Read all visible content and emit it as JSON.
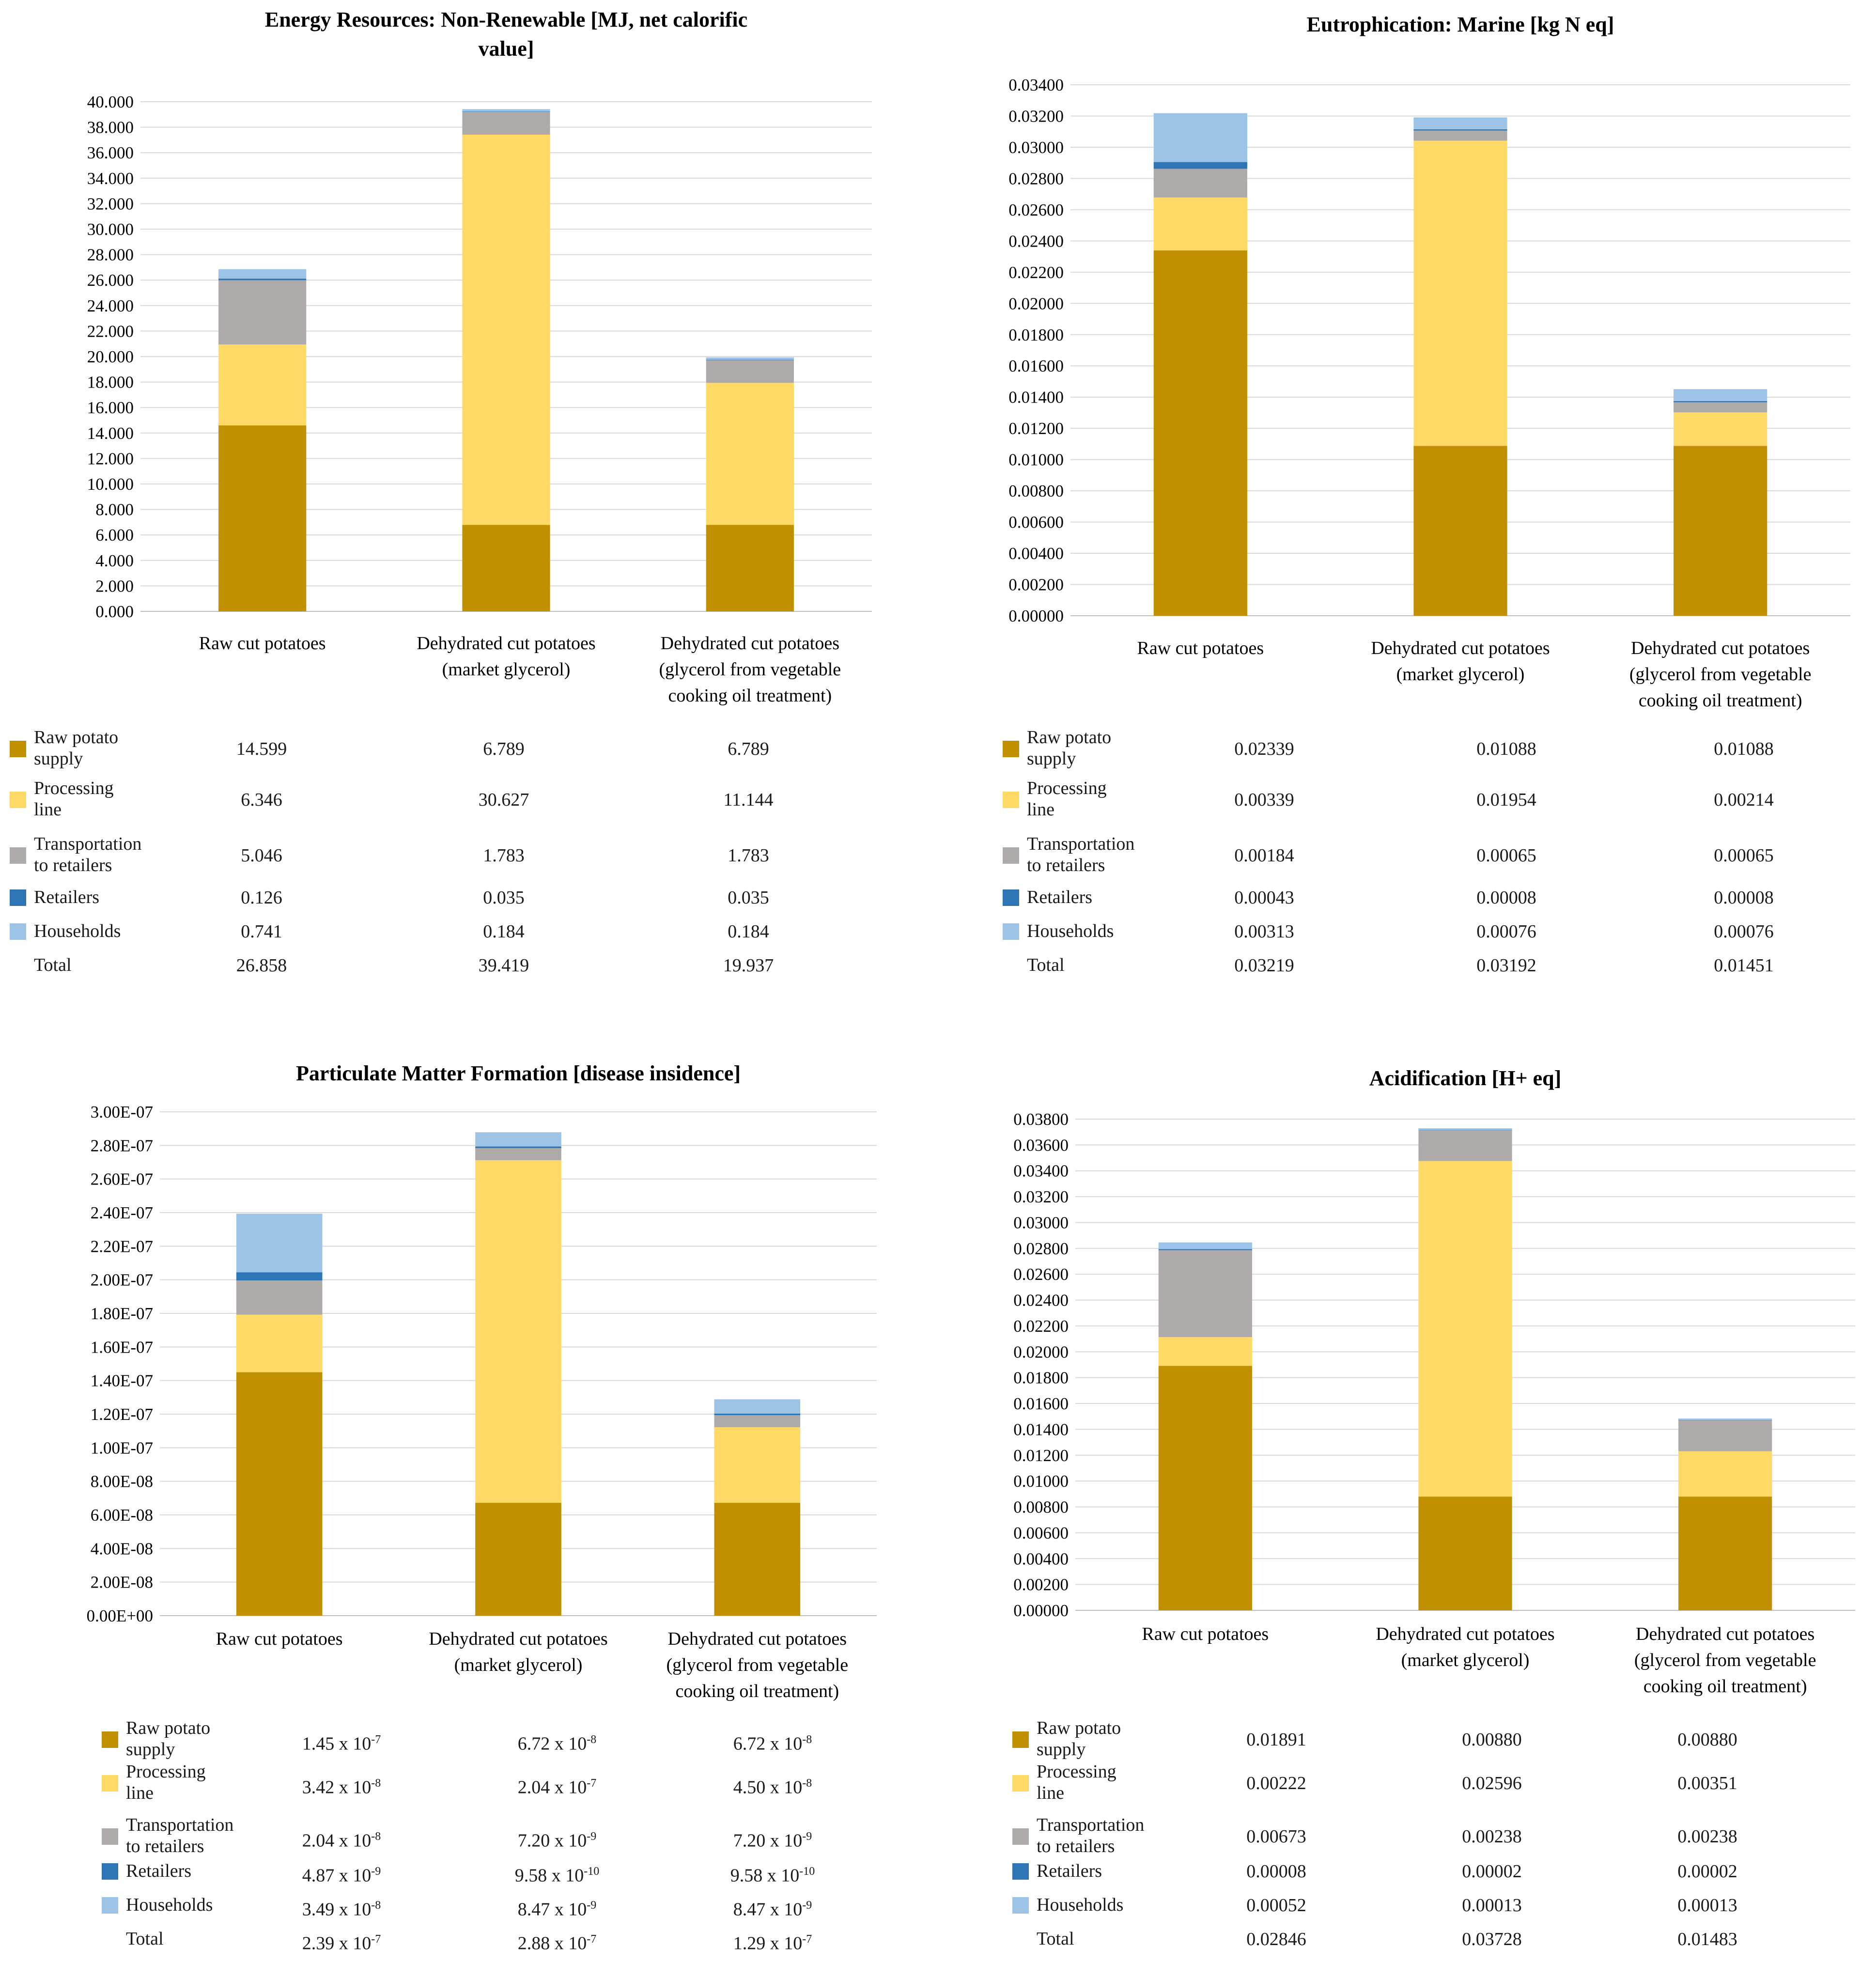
{
  "colors": {
    "Raw potato supply": "#C09000",
    "Processing line": "#FFD966",
    "Transportation to retailers": "#AEAAAA",
    "Retailers": "#2E75B6",
    "Households": "#9DC3E6"
  },
  "categories": [
    "Raw cut potatoes",
    "Dehydrated cut potatoes (market glycerol)",
    "Dehydrated cut potatoes (glycerol from vegetable cooking oil treatment)"
  ],
  "chart_data": [
    {
      "type": "bar",
      "stacked": true,
      "title": "Energy Resources: Non-Renewable [MJ, net calorific value]",
      "title_lines": [
        "Energy Resources: Non-Renewable [MJ, net calorific",
        "value]"
      ],
      "category_lines": [
        [
          "Raw cut potatoes"
        ],
        [
          "Dehydrated cut potatoes",
          "(market glycerol)"
        ],
        [
          "Dehydrated cut potatoes",
          "(glycerol from vegetable",
          "cooking oil treatment)"
        ]
      ],
      "ylim": [
        0,
        40
      ],
      "ytick_step": 2,
      "ytick_labels": [
        "0.000",
        "2.000",
        "4.000",
        "6.000",
        "8.000",
        "10.000",
        "12.000",
        "14.000",
        "16.000",
        "18.000",
        "20.000",
        "22.000",
        "24.000",
        "26.000",
        "28.000",
        "30.000",
        "32.000",
        "34.000",
        "36.000",
        "38.000",
        "40.000"
      ],
      "series": [
        {
          "name": "Raw potato supply",
          "label_lines": [
            "Raw potato",
            "supply"
          ],
          "values": [
            14.599,
            6.789,
            6.789
          ],
          "display": [
            "14.599",
            "6.789",
            "6.789"
          ]
        },
        {
          "name": "Processing line",
          "label_lines": [
            "Processing",
            "line"
          ],
          "values": [
            6.346,
            30.627,
            11.144
          ],
          "display": [
            "6.346",
            "30.627",
            "11.144"
          ]
        },
        {
          "name": "Transportation to retailers",
          "label_lines": [
            "Transportation",
            "to retailers"
          ],
          "values": [
            5.046,
            1.783,
            1.783
          ],
          "display": [
            "5.046",
            "1.783",
            "1.783"
          ]
        },
        {
          "name": "Retailers",
          "label_lines": [
            "Retailers"
          ],
          "values": [
            0.126,
            0.035,
            0.035
          ],
          "display": [
            "0.126",
            "0.035",
            "0.035"
          ]
        },
        {
          "name": "Households",
          "label_lines": [
            "Households"
          ],
          "values": [
            0.741,
            0.184,
            0.184
          ],
          "display": [
            "0.741",
            "0.184",
            "0.184"
          ]
        }
      ],
      "total_label": "Total",
      "totals": [
        "26.858",
        "39.419",
        "19.937"
      ]
    },
    {
      "type": "bar",
      "stacked": true,
      "title": "Eutrophication: Marine [kg N eq]",
      "title_lines": [
        "Eutrophication: Marine [kg N eq]"
      ],
      "category_lines": [
        [
          "Raw cut potatoes"
        ],
        [
          "Dehydrated cut potatoes",
          "(market glycerol)"
        ],
        [
          "Dehydrated cut potatoes",
          "(glycerol from vegetable",
          "cooking oil treatment)"
        ]
      ],
      "ylim": [
        0,
        0.034
      ],
      "ytick_step": 0.002,
      "ytick_labels": [
        "0.00000",
        "0.00200",
        "0.00400",
        "0.00600",
        "0.00800",
        "0.01000",
        "0.01200",
        "0.01400",
        "0.01600",
        "0.01800",
        "0.02000",
        "0.02200",
        "0.02400",
        "0.02600",
        "0.02800",
        "0.03000",
        "0.03200",
        "0.03400"
      ],
      "series": [
        {
          "name": "Raw potato supply",
          "label_lines": [
            "Raw potato",
            "supply"
          ],
          "values": [
            0.02339,
            0.01088,
            0.01088
          ],
          "display": [
            "0.02339",
            "0.01088",
            "0.01088"
          ]
        },
        {
          "name": "Processing line",
          "label_lines": [
            "Processing",
            "line"
          ],
          "values": [
            0.00339,
            0.01954,
            0.00214
          ],
          "display": [
            "0.00339",
            "0.01954",
            "0.00214"
          ]
        },
        {
          "name": "Transportation to retailers",
          "label_lines": [
            "Transportation",
            "to retailers"
          ],
          "values": [
            0.00184,
            0.00065,
            0.00065
          ],
          "display": [
            "0.00184",
            "0.00065",
            "0.00065"
          ]
        },
        {
          "name": "Retailers",
          "label_lines": [
            "Retailers"
          ],
          "values": [
            0.00043,
            8e-05,
            8e-05
          ],
          "display": [
            "0.00043",
            "0.00008",
            "0.00008"
          ]
        },
        {
          "name": "Households",
          "label_lines": [
            "Households"
          ],
          "values": [
            0.00313,
            0.00076,
            0.00076
          ],
          "display": [
            "0.00313",
            "0.00076",
            "0.00076"
          ]
        }
      ],
      "total_label": "Total",
      "totals": [
        "0.03219",
        "0.03192",
        "0.01451"
      ]
    },
    {
      "type": "bar",
      "stacked": true,
      "title": "Particulate Matter Formation [disease insidence]",
      "title_lines": [
        "Particulate Matter Formation [disease insidence]"
      ],
      "category_lines": [
        [
          "Raw cut potatoes"
        ],
        [
          "Dehydrated cut potatoes",
          "(market glycerol)"
        ],
        [
          "Dehydrated cut potatoes",
          "(glycerol from vegetable",
          "cooking oil treatment)"
        ]
      ],
      "ylim": [
        0,
        3e-07
      ],
      "ytick_step": 2e-08,
      "ytick_labels": [
        "0.00E+00",
        "2.00E-08",
        "4.00E-08",
        "6.00E-08",
        "8.00E-08",
        "1.00E-07",
        "1.20E-07",
        "1.40E-07",
        "1.60E-07",
        "1.80E-07",
        "2.00E-07",
        "2.20E-07",
        "2.40E-07",
        "2.60E-07",
        "2.80E-07",
        "3.00E-07"
      ],
      "series": [
        {
          "name": "Raw potato supply",
          "label_lines": [
            "Raw potato",
            "supply"
          ],
          "values": [
            1.45e-07,
            6.72e-08,
            6.72e-08
          ],
          "display": [
            "1.45 x 10-7",
            "6.72 x 10-8",
            "6.72 x 10-8"
          ]
        },
        {
          "name": "Processing line",
          "label_lines": [
            "Processing",
            "line"
          ],
          "values": [
            3.42e-08,
            2.04e-07,
            4.5e-08
          ],
          "display": [
            "3.42 x 10-8",
            "2.04 x 10-7",
            "4.50 x 10-8"
          ]
        },
        {
          "name": "Transportation to retailers",
          "label_lines": [
            "Transportation",
            "to retailers"
          ],
          "values": [
            2.04e-08,
            7.2e-09,
            7.2e-09
          ],
          "display": [
            "2.04 x 10-8",
            "7.20 x 10-9",
            "7.20 x 10-9"
          ]
        },
        {
          "name": "Retailers",
          "label_lines": [
            "Retailers"
          ],
          "values": [
            4.87e-09,
            9.58e-10,
            9.58e-10
          ],
          "display": [
            "4.87 x 10-9",
            "9.58 x 10-10",
            "9.58 x 10-10"
          ]
        },
        {
          "name": "Households",
          "label_lines": [
            "Households"
          ],
          "values": [
            3.49e-08,
            8.47e-09,
            8.47e-09
          ],
          "display": [
            "3.49 x 10-8",
            "8.47 x 10-9",
            "8.47 x 10-9"
          ]
        }
      ],
      "total_label": "Total",
      "totals": [
        "2.39 x 10-7",
        "2.88 x 10-7",
        "1.29 x 10-7"
      ]
    },
    {
      "type": "bar",
      "stacked": true,
      "title": "Acidification [H+ eq]",
      "title_lines": [
        "Acidification [H+ eq]"
      ],
      "category_lines": [
        [
          "Raw cut potatoes"
        ],
        [
          "Dehydrated cut potatoes",
          "(market glycerol)"
        ],
        [
          "Dehydrated cut potatoes",
          "(glycerol from vegetable",
          "cooking oil treatment)"
        ]
      ],
      "ylim": [
        0,
        0.038
      ],
      "ytick_step": 0.002,
      "ytick_labels": [
        "0.00000",
        "0.00200",
        "0.00400",
        "0.00600",
        "0.00800",
        "0.01000",
        "0.01200",
        "0.01400",
        "0.01600",
        "0.01800",
        "0.02000",
        "0.02200",
        "0.02400",
        "0.02600",
        "0.02800",
        "0.03000",
        "0.03200",
        "0.03400",
        "0.03600",
        "0.03800"
      ],
      "series": [
        {
          "name": "Raw potato supply",
          "label_lines": [
            "Raw potato",
            "supply"
          ],
          "values": [
            0.01891,
            0.0088,
            0.0088
          ],
          "display": [
            "0.01891",
            "0.00880",
            "0.00880"
          ]
        },
        {
          "name": "Processing line",
          "label_lines": [
            "Processing",
            "line"
          ],
          "values": [
            0.00222,
            0.02596,
            0.00351
          ],
          "display": [
            "0.00222",
            "0.02596",
            "0.00351"
          ]
        },
        {
          "name": "Transportation to retailers",
          "label_lines": [
            "Transportation",
            "to retailers"
          ],
          "values": [
            0.00673,
            0.00238,
            0.00238
          ],
          "display": [
            "0.00673",
            "0.00238",
            "0.00238"
          ]
        },
        {
          "name": "Retailers",
          "label_lines": [
            "Retailers"
          ],
          "values": [
            8e-05,
            2e-05,
            2e-05
          ],
          "display": [
            "0.00008",
            "0.00002",
            "0.00002"
          ]
        },
        {
          "name": "Households",
          "label_lines": [
            "Households"
          ],
          "values": [
            0.00052,
            0.00013,
            0.00013
          ],
          "display": [
            "0.00052",
            "0.00013",
            "0.00013"
          ]
        }
      ],
      "total_label": "Total",
      "totals": [
        "0.02846",
        "0.03728",
        "0.01483"
      ]
    }
  ]
}
